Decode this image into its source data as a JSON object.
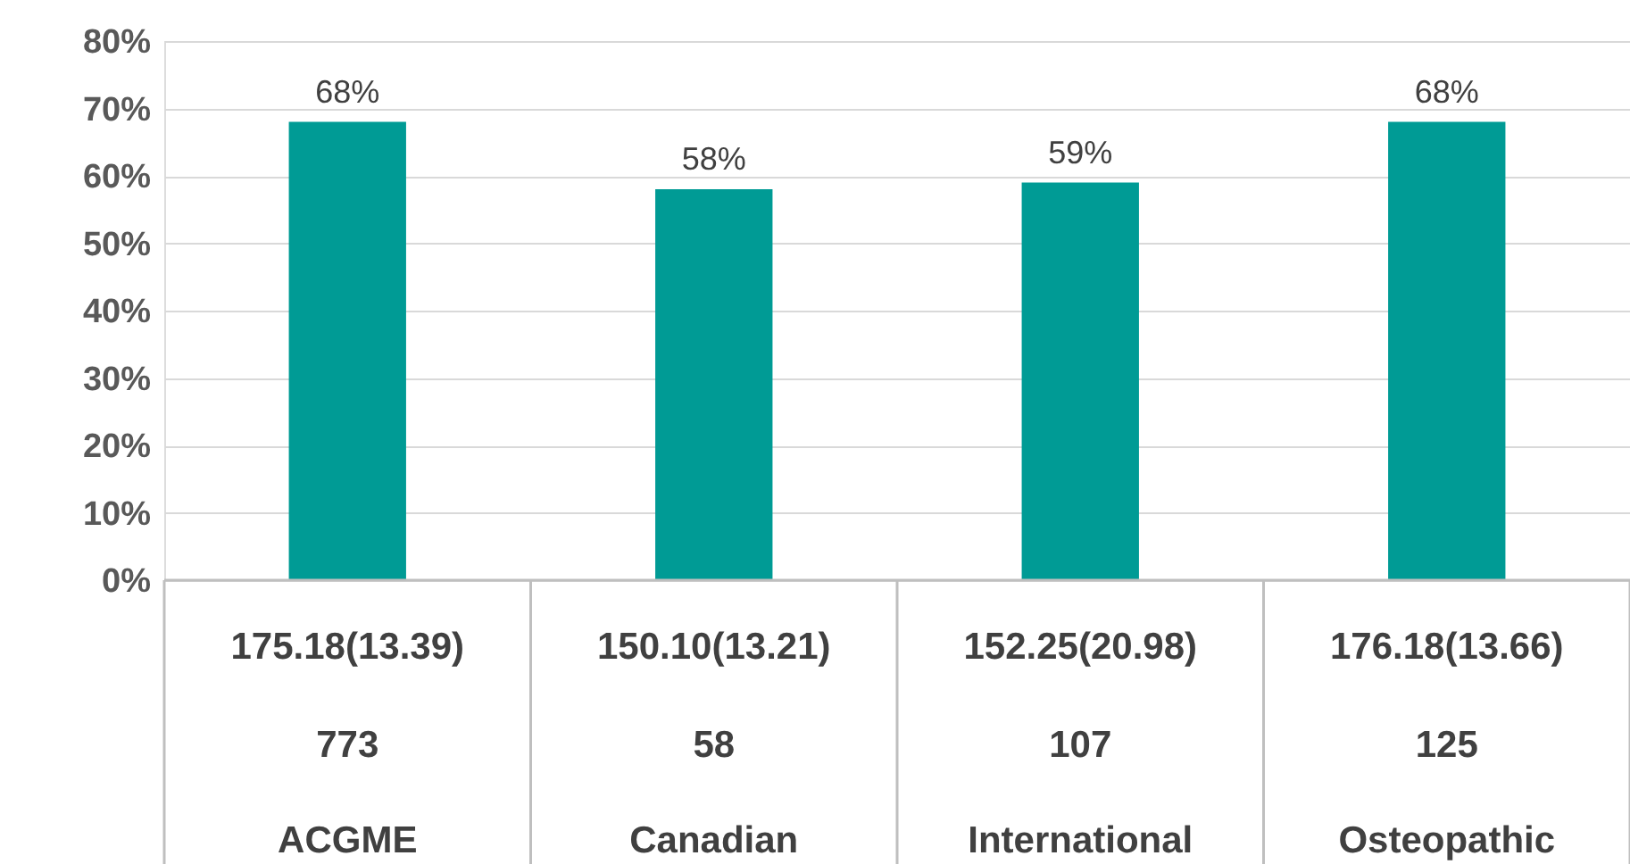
{
  "chart_data": {
    "type": "bar",
    "categories": [
      "ACGME",
      "Canadian",
      "International",
      "Osteopathic"
    ],
    "values": [
      68,
      58,
      59,
      68
    ],
    "color": "#009b95",
    "value_labels": [
      "68%",
      "58%",
      "59%",
      "68%"
    ],
    "ylim": [
      0,
      80
    ],
    "yticks": [
      {
        "value": 0,
        "label": "0%"
      },
      {
        "value": 10,
        "label": "10%"
      },
      {
        "value": 20,
        "label": "20%"
      },
      {
        "value": 30,
        "label": "30%"
      },
      {
        "value": 40,
        "label": "40%"
      },
      {
        "value": 50,
        "label": "50%"
      },
      {
        "value": 60,
        "label": "60%"
      },
      {
        "value": 70,
        "label": "70%"
      },
      {
        "value": 80,
        "label": "80%"
      }
    ],
    "grid": "y",
    "annotations": [
      "175.18(13.39)",
      "150.10(13.21)",
      "152.25(20.98)",
      "176.18(13.66)",
      "773",
      "58",
      "107",
      "125"
    ]
  }
}
